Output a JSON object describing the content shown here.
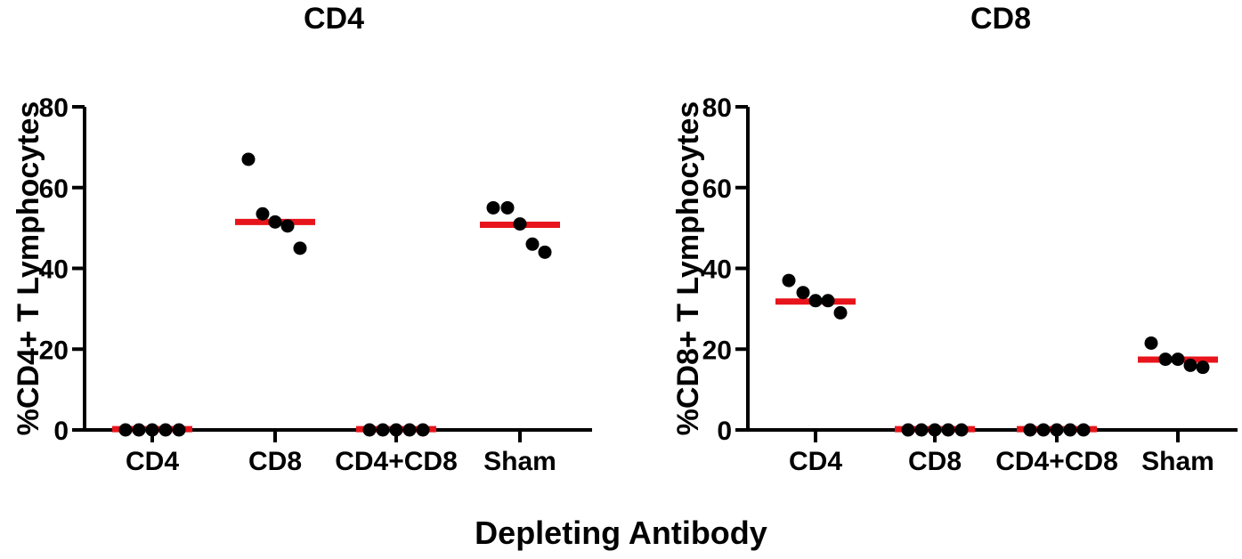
{
  "xlabel": "Depleting Antibody",
  "chart_data": [
    {
      "type": "scatter",
      "title": "CD4",
      "ylabel": "%CD4+ T Lymphocytes",
      "xlabel": "Depleting Antibody",
      "ylim": [
        0,
        80
      ],
      "yticks": [
        0,
        20,
        40,
        60,
        80
      ],
      "categories": [
        "CD4",
        "CD8",
        "CD4+CD8",
        "Sham"
      ],
      "points": [
        [
          0,
          0,
          0,
          0,
          0
        ],
        [
          67,
          53.5,
          51.5,
          50.5,
          45
        ],
        [
          0,
          0,
          0,
          0,
          0
        ],
        [
          55,
          55,
          51,
          46,
          44
        ]
      ],
      "means": [
        0.2,
        51.5,
        0.2,
        50.8
      ],
      "mean_color": "#e8141b",
      "point_color": "#000000"
    },
    {
      "type": "scatter",
      "title": "CD8",
      "ylabel": "%CD8+ T Lymphocytes",
      "xlabel": "Depleting Antibody",
      "ylim": [
        0,
        80
      ],
      "yticks": [
        0,
        20,
        40,
        60,
        80
      ],
      "categories": [
        "CD4",
        "CD8",
        "CD4+CD8",
        "Sham"
      ],
      "points": [
        [
          37,
          34,
          32,
          32,
          29
        ],
        [
          0,
          0,
          0,
          0,
          0
        ],
        [
          0,
          0,
          0,
          0,
          0
        ],
        [
          21.5,
          17.5,
          17.5,
          16,
          15.5
        ]
      ],
      "means": [
        31.8,
        0.2,
        0.2,
        17.4
      ],
      "mean_color": "#e8141b",
      "point_color": "#000000"
    }
  ]
}
